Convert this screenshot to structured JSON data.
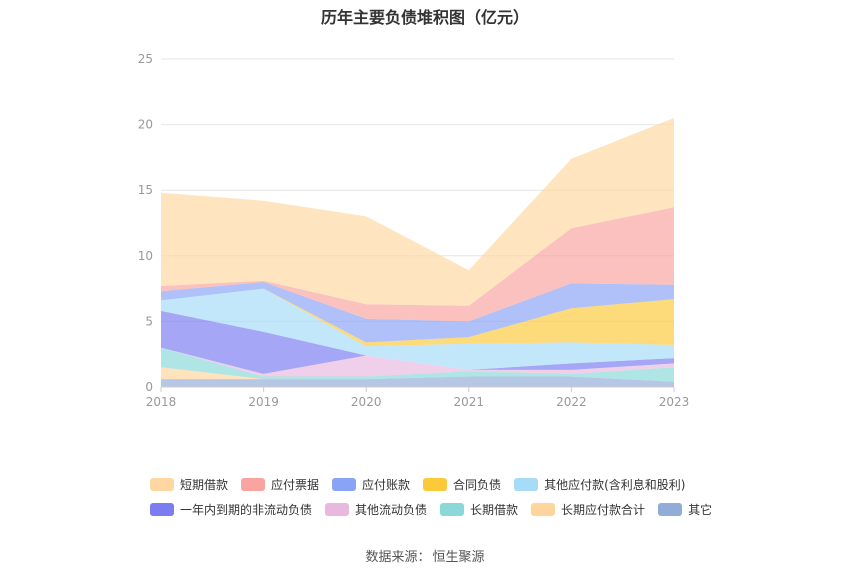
{
  "chart_data": {
    "type": "area",
    "title": "历年主要负债堆积图（亿元）",
    "x": [
      "2018",
      "2019",
      "2020",
      "2021",
      "2022",
      "2023"
    ],
    "ylim": [
      0,
      25
    ],
    "yticks": [
      0,
      5,
      10,
      15,
      20,
      25
    ],
    "grid": true,
    "legend_position": "bottom",
    "series": [
      {
        "name": "其它",
        "color": "#92acd8",
        "values": [
          0.6,
          0.6,
          0.6,
          0.8,
          0.8,
          0.4
        ]
      },
      {
        "name": "长期应付款合计",
        "color": "#fed59c",
        "values": [
          0.9,
          0.0,
          0.0,
          0.0,
          0.0,
          0.0
        ]
      },
      {
        "name": "长期借款",
        "color": "#8ad8d8",
        "values": [
          1.5,
          0.2,
          0.2,
          0.4,
          0.2,
          1.1
        ]
      },
      {
        "name": "其他流动负债",
        "color": "#e8b8de",
        "values": [
          0.0,
          0.2,
          1.6,
          0.1,
          0.3,
          0.3
        ]
      },
      {
        "name": "一年内到期的非流动负债",
        "color": "#7b7cf1",
        "values": [
          2.8,
          3.2,
          0.0,
          0.0,
          0.5,
          0.4
        ]
      },
      {
        "name": "其他应付款(含利息和股利)",
        "color": "#a5dcf8",
        "values": [
          0.8,
          3.3,
          0.7,
          2.0,
          1.6,
          1.0
        ]
      },
      {
        "name": "合同负债",
        "color": "#fcc93b",
        "values": [
          0.0,
          0.0,
          0.3,
          0.5,
          2.6,
          3.5
        ]
      },
      {
        "name": "应付账款",
        "color": "#89a4f4",
        "values": [
          0.7,
          0.5,
          1.8,
          1.2,
          1.9,
          1.1
        ]
      },
      {
        "name": "应付票据",
        "color": "#f9a4a0",
        "values": [
          0.4,
          0.1,
          1.1,
          1.2,
          4.2,
          5.9
        ]
      },
      {
        "name": "短期借款",
        "color": "#fed8a0",
        "values": [
          7.1,
          6.1,
          6.7,
          2.7,
          5.3,
          6.8
        ]
      }
    ],
    "legend_rows": [
      [
        "短期借款",
        "应付票据",
        "应付账款",
        "合同负债",
        "其他应付款(含利息和股利)"
      ],
      [
        "一年内到期的非流动负债",
        "其他流动负债",
        "长期借款",
        "长期应付款合计",
        "其它"
      ]
    ]
  },
  "source": {
    "label": "数据来源：",
    "value": "恒生聚源"
  }
}
